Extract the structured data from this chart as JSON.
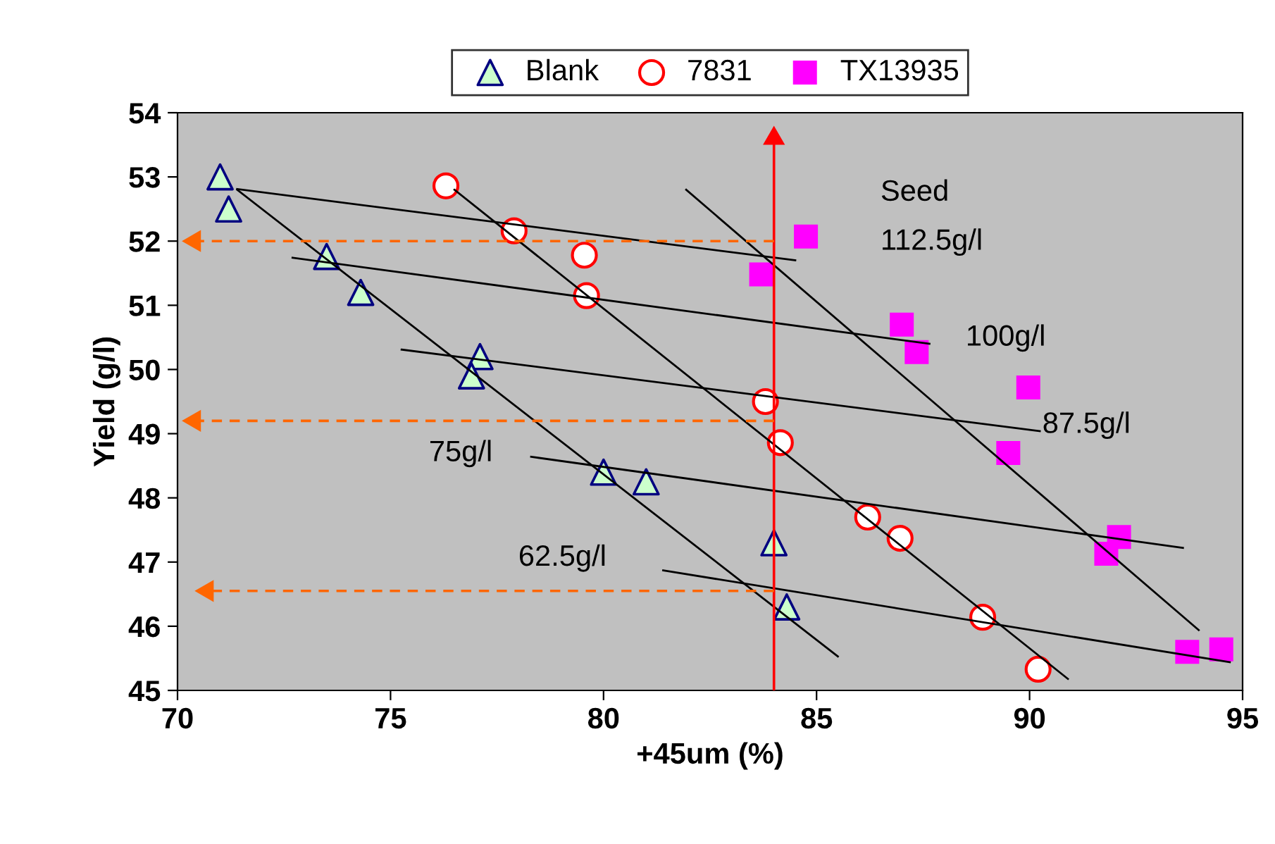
{
  "chart_data": {
    "type": "scatter",
    "xlabel": "+45um (%)",
    "ylabel": "Yield (g/l)",
    "xlim": [
      70,
      95
    ],
    "xticks": [
      70,
      75,
      80,
      85,
      90,
      95
    ],
    "ylim": [
      45,
      54
    ],
    "yticks": [
      45,
      46,
      47,
      48,
      49,
      50,
      51,
      52,
      53,
      54
    ],
    "grid": false,
    "legend": "top",
    "series": [
      {
        "name": "Blank",
        "marker": "triangle",
        "color": "#ccffcc",
        "x": [
          71.0,
          71.2,
          73.5,
          74.3,
          77.1,
          76.9,
          80.0,
          81.0,
          84.0,
          84.3
        ],
        "values": [
          53.0,
          52.5,
          51.76,
          51.2,
          50.2,
          49.9,
          48.4,
          48.25,
          47.3,
          46.3
        ]
      },
      {
        "name": "7831",
        "marker": "circle",
        "color": "#ff0000",
        "x": [
          76.3,
          77.9,
          79.55,
          79.6,
          83.8,
          84.15,
          86.2,
          86.96,
          88.9,
          90.2
        ],
        "values": [
          52.86,
          52.16,
          51.78,
          51.15,
          49.5,
          48.86,
          47.7,
          47.37,
          46.14,
          45.33
        ]
      },
      {
        "name": "TX13935",
        "marker": "square",
        "color": "#ff00ff",
        "x": [
          84.75,
          83.7,
          87.0,
          87.35,
          89.97,
          89.5,
          92.1,
          91.8,
          93.7,
          94.5
        ],
        "values": [
          52.07,
          51.48,
          50.7,
          50.27,
          49.72,
          48.7,
          47.39,
          47.13,
          45.6,
          45.64
        ]
      },
      {
        "type": "line",
        "color": "#000000",
        "marker": "none",
        "line_style": "solid",
        "x": [
          71.4,
          84.5
        ],
        "values": [
          52.81,
          51.7
        ]
      },
      {
        "type": "line",
        "color": "#000000",
        "marker": "none",
        "line_style": "solid",
        "x": [
          72.7,
          87.65
        ],
        "values": [
          51.74,
          50.4
        ]
      },
      {
        "type": "line",
        "color": "#000000",
        "marker": "none",
        "line_style": "solid",
        "x": [
          75.26,
          90.24
        ],
        "values": [
          50.31,
          49.04
        ]
      },
      {
        "type": "line",
        "color": "#000000",
        "marker": "none",
        "line_style": "solid",
        "x": [
          78.3,
          93.6
        ],
        "values": [
          48.64,
          47.22
        ]
      },
      {
        "type": "line",
        "color": "#000000",
        "marker": "none",
        "line_style": "solid",
        "x": [
          81.4,
          94.7
        ],
        "values": [
          46.87,
          45.44
        ]
      },
      {
        "type": "line",
        "color": "#000000",
        "marker": "none",
        "line_style": "solid",
        "x": [
          71.4,
          85.5
        ],
        "values": [
          52.8,
          45.53
        ]
      },
      {
        "type": "line",
        "color": "#000000",
        "marker": "none",
        "line_style": "solid",
        "x": [
          76.5,
          90.9
        ],
        "values": [
          52.8,
          45.18
        ]
      },
      {
        "type": "line",
        "color": "#000000",
        "marker": "none",
        "line_style": "solid",
        "x": [
          81.94,
          93.97
        ],
        "values": [
          52.8,
          45.94
        ]
      },
      {
        "type": "line",
        "color": "#ff0000",
        "marker": "triangle",
        "line_style": "solid",
        "x": [
          84,
          84
        ],
        "values": [
          45,
          53.6
        ]
      },
      {
        "type": "line",
        "color": "#ff6600",
        "marker": "triangle",
        "line_style": "dashed",
        "x": [
          84,
          70.4
        ],
        "values": [
          52.0,
          52.0
        ]
      },
      {
        "type": "line",
        "color": "#ff6600",
        "marker": "triangle",
        "line_style": "dashed",
        "x": [
          84,
          70.4
        ],
        "values": [
          49.2,
          49.2
        ]
      },
      {
        "type": "line",
        "color": "#ff6600",
        "marker": "triangle",
        "line_style": "dashed",
        "x": [
          84,
          70.7
        ],
        "values": [
          46.55,
          46.55
        ]
      }
    ],
    "annotations": [
      "Seed",
      "112.5g/l",
      "100g/l",
      "87.5g/l",
      "75g/l",
      "62.5g/l"
    ]
  }
}
